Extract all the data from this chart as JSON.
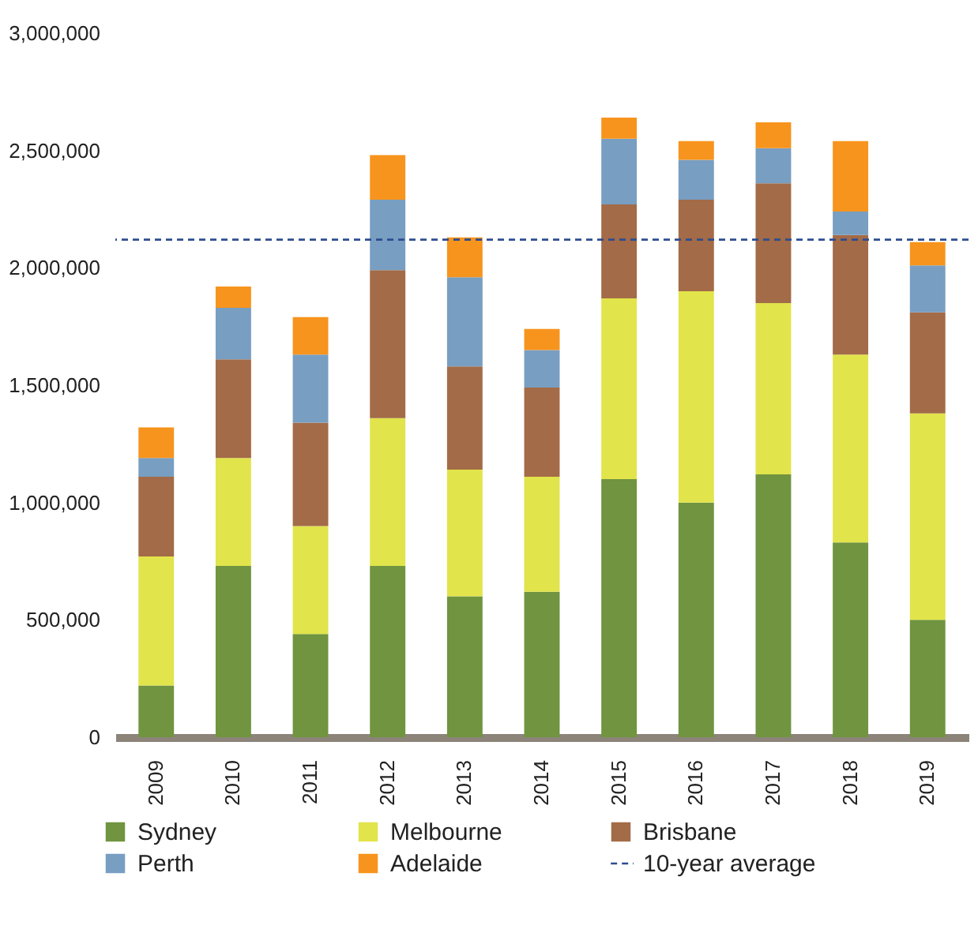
{
  "chart_data": {
    "type": "bar",
    "stacked": true,
    "categories": [
      "2009",
      "2010",
      "2011",
      "2012",
      "2013",
      "2014",
      "2015",
      "2016",
      "2017",
      "2018",
      "2019"
    ],
    "series": [
      {
        "name": "Sydney",
        "color": "#70943f",
        "values": [
          220000,
          730000,
          440000,
          730000,
          600000,
          620000,
          1100000,
          1000000,
          1120000,
          830000,
          500000
        ]
      },
      {
        "name": "Melbourne",
        "color": "#e1e44b",
        "values": [
          550000,
          460000,
          460000,
          630000,
          540000,
          490000,
          770000,
          900000,
          730000,
          800000,
          880000
        ]
      },
      {
        "name": "Brisbane",
        "color": "#a36b47",
        "values": [
          340000,
          420000,
          440000,
          630000,
          440000,
          380000,
          400000,
          390000,
          510000,
          510000,
          430000
        ]
      },
      {
        "name": "Perth",
        "color": "#789ec2",
        "values": [
          80000,
          220000,
          290000,
          300000,
          380000,
          160000,
          280000,
          170000,
          150000,
          100000,
          200000
        ]
      },
      {
        "name": "Adelaide",
        "color": "#f7941d",
        "values": [
          130000,
          90000,
          160000,
          190000,
          170000,
          90000,
          90000,
          80000,
          110000,
          300000,
          100000
        ]
      }
    ],
    "ref_lines": [
      {
        "axis": "y",
        "value": 2120000,
        "label": "10-year average",
        "color": "#2e4d8f",
        "line_style": "dashed"
      }
    ],
    "ylim": [
      0,
      3000000
    ],
    "yticks": [
      0,
      {
        "value": 500000,
        "label": "500,000"
      },
      {
        "value": 1000000,
        "label": "1,000,000"
      },
      {
        "value": 1500000,
        "label": "1,500,000"
      },
      {
        "value": 2000000,
        "label": "2,000,000"
      },
      {
        "value": 2500000,
        "label": "2,500,000"
      },
      {
        "value": 3000000,
        "label": "3,000,000"
      }
    ],
    "grid": false,
    "legend": "bottom"
  }
}
